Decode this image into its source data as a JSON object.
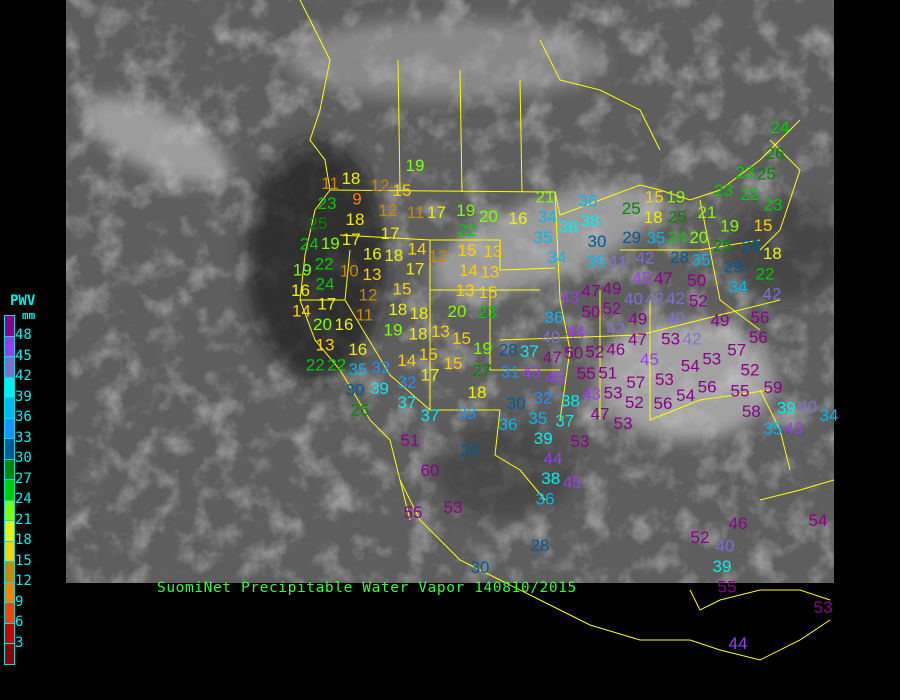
{
  "caption": "SuomiNet Precipitable Water Vapor 140810/2015",
  "legend": {
    "title": "PWV",
    "unit": "mm",
    "ticks": [
      "48",
      "45",
      "42",
      "39",
      "36",
      "33",
      "30",
      "27",
      "24",
      "21",
      "18",
      "15",
      "12",
      "9",
      "6",
      "3"
    ],
    "colors": [
      "#8a008a",
      "#9a3cf0",
      "#8070d0",
      "#00f0f0",
      "#00b8f0",
      "#1e90ff",
      "#005a9a",
      "#008800",
      "#00cc00",
      "#80ff00",
      "#f0f000",
      "#ffd000",
      "#cc8800",
      "#ff8000",
      "#ff4000",
      "#d00000",
      "#900000"
    ]
  },
  "map": {
    "boundary_color": "#ffff00",
    "background": "#000000"
  },
  "stations": [
    "19",
    "11",
    "18",
    "12",
    "15",
    "9",
    "12",
    "11",
    "17",
    "19",
    "20",
    "16",
    "23",
    "18",
    "25",
    "17",
    "17",
    "22",
    "24",
    "19",
    "16",
    "18",
    "14",
    "12",
    "15",
    "13",
    "19",
    "22",
    "10",
    "13",
    "14",
    "17",
    "13",
    "13",
    "15",
    "16",
    "24",
    "15",
    "17",
    "12",
    "18",
    "20",
    "23",
    "14",
    "20",
    "11",
    "16",
    "19",
    "18",
    "13",
    "13",
    "18",
    "15",
    "15",
    "19",
    "28",
    "37",
    "22",
    "16",
    "14",
    "22",
    "35",
    "32",
    "15",
    "27",
    "31",
    "43",
    "17",
    "30",
    "39",
    "32",
    "37",
    "18",
    "26",
    "37",
    "33",
    "30",
    "36",
    "24",
    "26",
    "23",
    "25",
    "23",
    "22",
    "21",
    "34",
    "38",
    "36",
    "38",
    "25",
    "15",
    "21",
    "23",
    "18",
    "19",
    "15",
    "35",
    "30",
    "29",
    "25",
    "35",
    "24",
    "20",
    "19",
    "34",
    "28",
    "25",
    "29",
    "18",
    "35",
    "35",
    "41",
    "42",
    "50",
    "29",
    "34",
    "22",
    "45",
    "47",
    "42",
    "47",
    "49",
    "40",
    "42",
    "42",
    "52",
    "43",
    "50",
    "52",
    "49",
    "40",
    "49",
    "56",
    "36",
    "42",
    "47",
    "42",
    "53",
    "56",
    "40",
    "44",
    "46",
    "50",
    "52",
    "45",
    "53",
    "57",
    "54",
    "53",
    "52",
    "47",
    "45",
    "55",
    "51",
    "56",
    "55",
    "59",
    "43",
    "53",
    "57",
    "52",
    "56",
    "54",
    "32",
    "38",
    "47",
    "35",
    "37",
    "53",
    "58",
    "39",
    "40",
    "34",
    "35",
    "43",
    "51",
    "39",
    "53",
    "29",
    "44",
    "38",
    "60",
    "45",
    "36",
    "55",
    "53",
    "46",
    "54",
    "52",
    "28",
    "40",
    "30",
    "39",
    "55",
    "53",
    "44"
  ]
}
